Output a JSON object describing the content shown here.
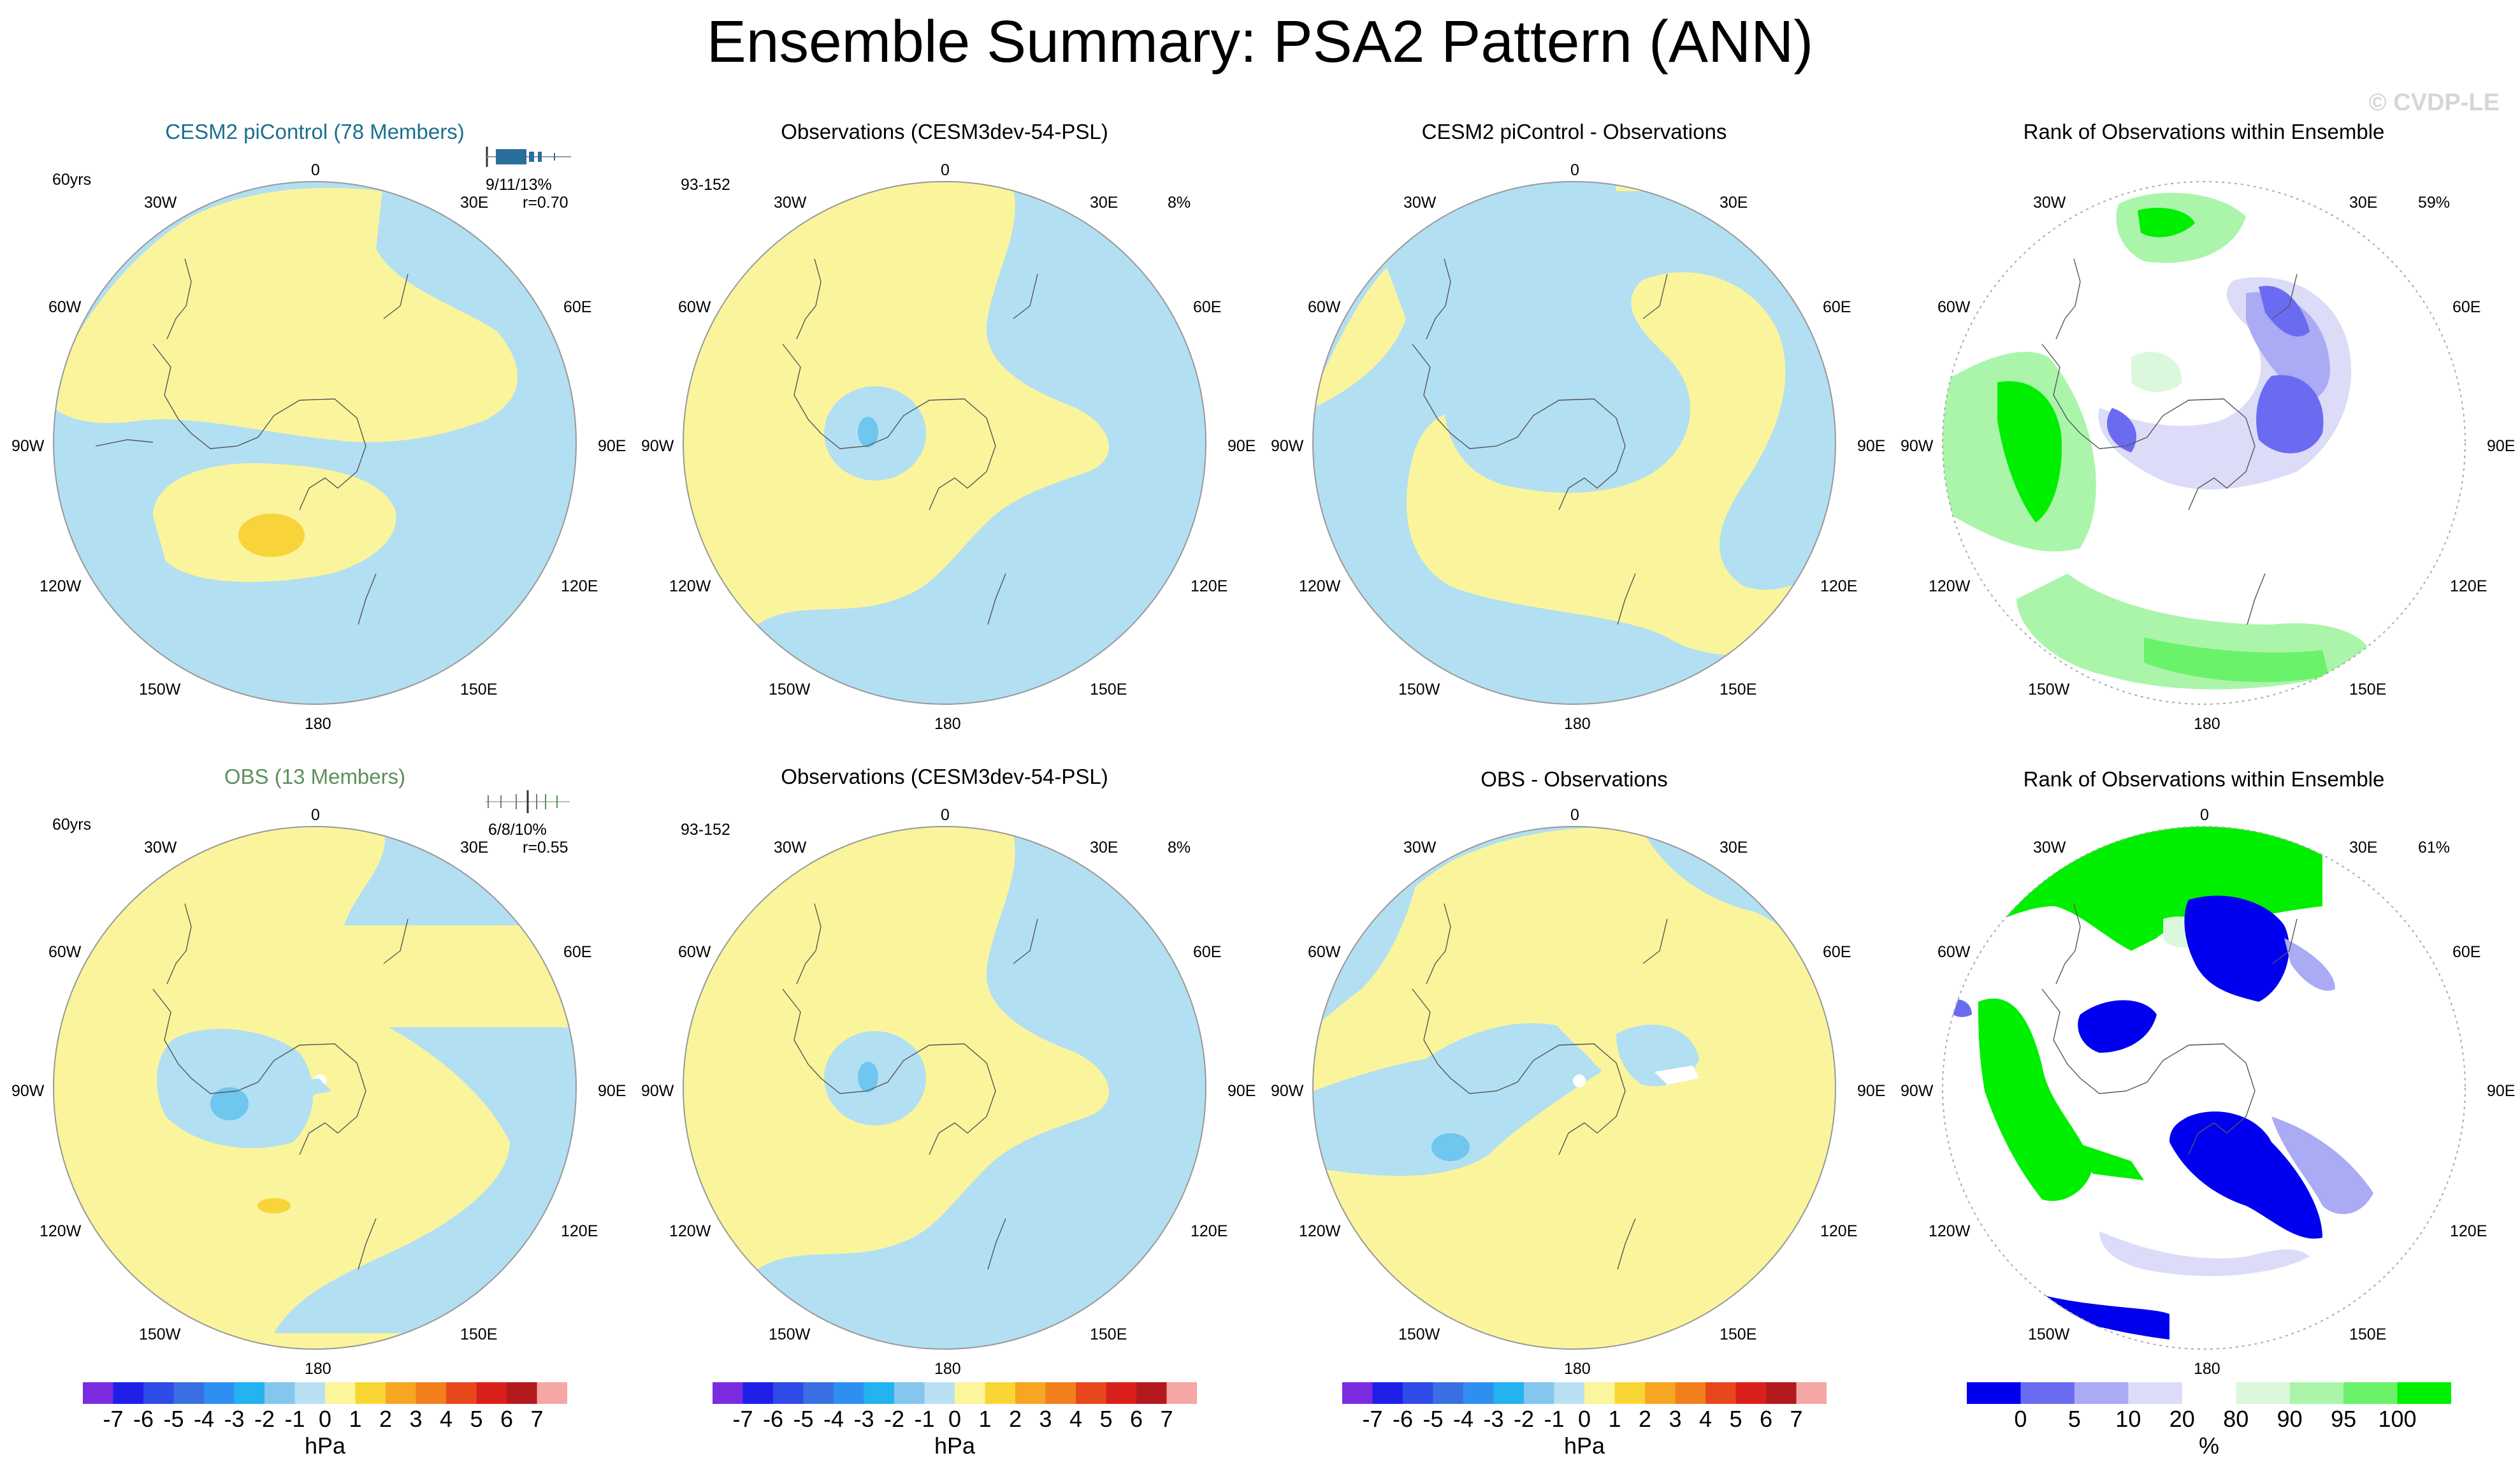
{
  "page": {
    "title": "Ensemble Summary: PSA2 Pattern (ANN)",
    "watermark": "© CVDP-LE",
    "colors": {
      "neg": "#b3dff2",
      "neg_strong": "#6fc6ee",
      "pos": "#faf59c",
      "pos_strong": "#f8d33a",
      "rank_green": "#00ee00",
      "rank_blue": "#0000ee"
    }
  },
  "rows": [
    {
      "ensemble_title": "CESM2 piControl (78 Members)",
      "ensemble_title_color": "#1b6f8f",
      "years": "60yrs",
      "pct_stats": "9/11/13%",
      "pattern_r": "r=0.70",
      "obs_title": "Observations (CESM3dev-54-PSL)",
      "obs_years": "93-152",
      "obs_pct": "8%",
      "diff_title": "CESM2 piControl - Observations",
      "rank_title": "Rank of Observations within Ensemble",
      "rank_pct": "59%"
    },
    {
      "ensemble_title": "OBS (13 Members)",
      "ensemble_title_color": "#5c8f5c",
      "years": "60yrs",
      "pct_stats": "6/8/10%",
      "pattern_r": "r=0.55",
      "obs_title": "Observations (CESM3dev-54-PSL)",
      "obs_years": "93-152",
      "obs_pct": "8%",
      "diff_title": "OBS - Observations",
      "rank_title": "Rank of Observations within Ensemble",
      "rank_pct": "61%"
    }
  ],
  "map_labels": {
    "top": "0",
    "bottom": "180",
    "left_top": "30W",
    "right_top": "30E",
    "left_upper": "60W",
    "right_upper": "60E",
    "left_mid": "90W",
    "right_mid": "90E",
    "left_lower": "120W",
    "right_lower": "120E",
    "left_bottom": "150W",
    "right_bottom": "150E"
  },
  "hpa_colorbar": {
    "unit": "hPa",
    "ticks": [
      "-7",
      "-6",
      "-5",
      "-4",
      "-3",
      "-2",
      "-1",
      "0",
      "1",
      "2",
      "3",
      "4",
      "5",
      "6",
      "7"
    ],
    "colors": [
      "#7b2be0",
      "#1f1fe8",
      "#2e4be8",
      "#3a6fe3",
      "#2f8ff0",
      "#22b3f0",
      "#84c6ee",
      "#b9e0f2",
      "#fbf59b",
      "#f8d634",
      "#f6a623",
      "#f1801c",
      "#e8471b",
      "#d9201c",
      "#b31a1e",
      "#f4a7a4"
    ]
  },
  "rank_colorbar": {
    "unit": "%",
    "ticks": [
      "0",
      "5",
      "10",
      "20",
      "80",
      "90",
      "95",
      "100"
    ],
    "colors": [
      "#0000ee",
      "#6b6bf2",
      "#aaaaf5",
      "#dcdcf8",
      "#ffffff",
      "#dcf8dc",
      "#aaf5aa",
      "#6bf26b",
      "#00ee00"
    ]
  }
}
